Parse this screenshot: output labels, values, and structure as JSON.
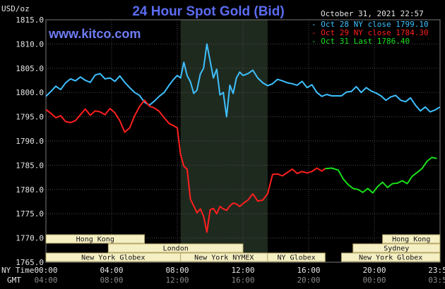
{
  "header": {
    "unit": "USD/oz",
    "title": "24 Hour Spot Gold (Bid)",
    "timestamp": "October 31, 2021 22:57",
    "website": "www.kitco.com"
  },
  "x_axis": {
    "row1_label": "NY Time",
    "row2_label": "GMT",
    "row1_ticks": [
      "00:00",
      "04:00",
      "08:00",
      "12:00",
      "16:00",
      "20:00",
      "23:59"
    ],
    "row2_ticks": [
      "04:00",
      "08:00",
      "12:00",
      "16:00",
      "20:00",
      "00:00",
      "03:59"
    ]
  },
  "sessions": [
    {
      "label": "Hong Kong",
      "start": 0.0,
      "end": 6.0,
      "row": 0
    },
    {
      "label": "London",
      "start": 3.8,
      "end": 12.0,
      "row": 1
    },
    {
      "label": "New York Globex",
      "start": 0.0,
      "end": 8.2,
      "row": 2
    },
    {
      "label": "New York NYMEX",
      "start": 8.2,
      "end": 13.5,
      "row": 2
    },
    {
      "label": "NY Globex",
      "start": 13.5,
      "end": 17.0,
      "row": 2
    },
    {
      "label": "Hong Kong",
      "start": 20.5,
      "end": 23.99,
      "row": 0
    },
    {
      "label": "Sydney",
      "start": 18.7,
      "end": 23.99,
      "row": 1
    },
    {
      "label": "New York Globex",
      "start": 18.0,
      "end": 23.99,
      "row": 2
    }
  ],
  "shaded_period": {
    "start": 8.2,
    "end": 13.5
  },
  "colors": {
    "background": "#000000",
    "grid": "#4a4a4a",
    "shade": "#1f2a1f",
    "session_box": "#f5efc4",
    "oct28": "#3ec0ff",
    "oct29": "#ff1f1f",
    "oct31": "#19e019",
    "title": "#5c6cf2"
  },
  "chart_data": {
    "type": "line",
    "title": "24 Hour Spot Gold (Bid)",
    "ylabel": "USD/oz",
    "xlabel": "NY Time",
    "ylim": [
      1765.0,
      1815.0
    ],
    "xlim": [
      0,
      24
    ],
    "y_ticks": [
      "1815.0",
      "1810.0",
      "1805.0",
      "1800.0",
      "1795.0",
      "1790.0",
      "1785.0",
      "1780.0",
      "1775.0",
      "1770.0",
      "1765.0"
    ],
    "grid": true,
    "legend_position": "top-right",
    "series": [
      {
        "name": "Oct 28 NY close 1799.10",
        "color": "#3ec0ff",
        "x": [
          0,
          0.3,
          0.6,
          0.9,
          1.2,
          1.5,
          1.8,
          2.1,
          2.4,
          2.7,
          3.0,
          3.3,
          3.6,
          3.9,
          4.2,
          4.5,
          4.8,
          5.1,
          5.4,
          5.7,
          6.0,
          6.3,
          6.6,
          6.9,
          7.2,
          7.5,
          7.8,
          8.0,
          8.2,
          8.4,
          8.6,
          8.8,
          9.0,
          9.2,
          9.4,
          9.6,
          9.8,
          10.0,
          10.2,
          10.4,
          10.6,
          10.8,
          11.0,
          11.2,
          11.4,
          11.6,
          11.8,
          12.0,
          12.3,
          12.6,
          12.9,
          13.2,
          13.5,
          13.8,
          14.1,
          14.4,
          14.7,
          15.0,
          15.3,
          15.6,
          15.9,
          16.2,
          16.5,
          16.8,
          17.1,
          17.4,
          17.7,
          18.0,
          18.3,
          18.6,
          18.9,
          19.2,
          19.5,
          19.8,
          20.1,
          20.4,
          20.7,
          21.0,
          21.3,
          21.6,
          21.9,
          22.2,
          22.5,
          22.8,
          23.1,
          23.4,
          23.7,
          23.99
        ],
        "values": [
          1799.2,
          1800.2,
          1801.3,
          1800.6,
          1802.0,
          1802.8,
          1802.4,
          1803.2,
          1802.5,
          1802.1,
          1803.6,
          1803.9,
          1802.8,
          1803.0,
          1802.3,
          1803.4,
          1802.1,
          1801.0,
          1800.0,
          1799.4,
          1798.0,
          1797.4,
          1798.2,
          1799.2,
          1800.0,
          1801.5,
          1802.8,
          1803.5,
          1803.0,
          1806.2,
          1803.5,
          1802.2,
          1799.8,
          1800.5,
          1803.8,
          1805.0,
          1810.0,
          1806.5,
          1803.0,
          1804.8,
          1799.5,
          1800.0,
          1795.0,
          1801.5,
          1799.8,
          1803.0,
          1804.2,
          1803.5,
          1803.9,
          1804.6,
          1803.0,
          1802.0,
          1801.4,
          1801.8,
          1802.7,
          1802.4,
          1802.0,
          1801.8,
          1801.5,
          1802.3,
          1801.0,
          1801.6,
          1800.0,
          1799.2,
          1799.6,
          1799.3,
          1799.3,
          1799.3,
          1800.1,
          1800.2,
          1801.2,
          1800.0,
          1801.0,
          1800.3,
          1799.9,
          1799.3,
          1798.4,
          1799.1,
          1799.4,
          1798.4,
          1798.1,
          1798.9,
          1797.4,
          1796.2,
          1797.0,
          1796.0,
          1796.4,
          1797.0
        ]
      },
      {
        "name": "Oct 29 NY close 1784.30",
        "color": "#ff1f1f",
        "x": [
          0,
          0.3,
          0.6,
          0.9,
          1.2,
          1.5,
          1.8,
          2.1,
          2.4,
          2.7,
          3.0,
          3.3,
          3.6,
          3.9,
          4.2,
          4.5,
          4.8,
          5.1,
          5.4,
          5.7,
          6.0,
          6.3,
          6.6,
          6.9,
          7.2,
          7.5,
          7.8,
          8.0,
          8.2,
          8.4,
          8.6,
          8.8,
          9.0,
          9.2,
          9.4,
          9.6,
          9.8,
          10.0,
          10.2,
          10.4,
          10.6,
          10.8,
          11.0,
          11.2,
          11.4,
          11.6,
          11.8,
          12.0,
          12.3,
          12.6,
          12.9,
          13.2,
          13.5,
          13.8,
          14.1,
          14.4,
          14.7,
          15.0,
          15.3,
          15.6,
          15.9,
          16.2,
          16.5,
          16.8,
          17.0
        ],
        "values": [
          1796.5,
          1795.7,
          1794.8,
          1795.2,
          1794.0,
          1793.8,
          1794.2,
          1795.4,
          1796.6,
          1795.3,
          1796.2,
          1796.0,
          1795.4,
          1796.7,
          1795.8,
          1794.2,
          1791.8,
          1792.7,
          1795.2,
          1797.1,
          1798.4,
          1797.2,
          1796.8,
          1796.1,
          1794.8,
          1793.6,
          1793.1,
          1792.7,
          1787.2,
          1784.8,
          1784.2,
          1778.0,
          1776.6,
          1775.2,
          1776.0,
          1774.5,
          1771.2,
          1775.8,
          1776.1,
          1775.0,
          1776.5,
          1776.0,
          1775.7,
          1776.6,
          1777.2,
          1777.0,
          1776.5,
          1777.1,
          1777.8,
          1779.1,
          1777.6,
          1777.8,
          1779.1,
          1783.1,
          1783.2,
          1782.8,
          1783.5,
          1784.2,
          1783.3,
          1783.7,
          1783.4,
          1783.7,
          1784.4,
          1783.8,
          1784.3
        ]
      },
      {
        "name": "Oct 31 Last 1786.40",
        "color": "#19e019",
        "x": [
          17.0,
          17.4,
          17.8,
          18.1,
          18.4,
          18.7,
          19.0,
          19.3,
          19.6,
          19.9,
          20.2,
          20.5,
          20.8,
          21.1,
          21.4,
          21.7,
          22.0,
          22.3,
          22.6,
          22.9,
          23.2,
          23.5,
          23.8
        ],
        "values": [
          1784.3,
          1784.4,
          1784.0,
          1782.2,
          1781.0,
          1780.2,
          1780.0,
          1779.4,
          1780.2,
          1779.3,
          1780.6,
          1781.5,
          1780.4,
          1781.2,
          1781.3,
          1781.8,
          1781.2,
          1782.7,
          1783.5,
          1784.3,
          1785.8,
          1786.6,
          1786.4
        ]
      }
    ]
  }
}
